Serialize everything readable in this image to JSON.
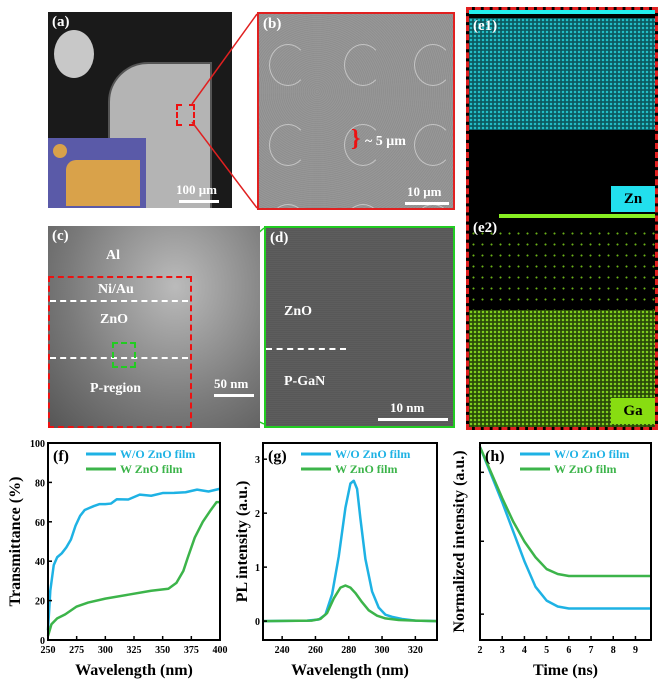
{
  "panels": {
    "a": {
      "label": "(a)",
      "scale_bar": "100 μm"
    },
    "b": {
      "label": "(b)",
      "annotation": "~ 5 μm",
      "scale_bar": "10 μm"
    },
    "c": {
      "label": "(c)",
      "layers": [
        "Al",
        "Ni/Au",
        "ZnO",
        "P-region"
      ],
      "scale_bar": "50 nm"
    },
    "d": {
      "label": "(d)",
      "layers": [
        "ZnO",
        "P-GaN"
      ],
      "scale_bar": "10 nm"
    },
    "e1": {
      "label": "(e1)",
      "element": "Zn"
    },
    "e2": {
      "label": "(e2)",
      "element": "Ga"
    }
  },
  "colors": {
    "blue": "#1eb2e4",
    "green": "#3cb44a",
    "zn": "#22e0ee",
    "ga": "#88dd11"
  },
  "chart_data": [
    {
      "id": "f",
      "type": "line",
      "label": "(f)",
      "xlabel": "Wavelength (nm)",
      "ylabel": "Transmittance (%)",
      "xlim": [
        250,
        400
      ],
      "ylim": [
        0,
        100
      ],
      "xticks": [
        250,
        275,
        300,
        325,
        350,
        375,
        400
      ],
      "yticks": [
        0,
        20,
        40,
        60,
        80,
        100
      ],
      "legend": "top-right",
      "series": [
        {
          "name": "W/O ZnO film",
          "x": [
            250,
            252,
            255,
            258,
            262,
            266,
            270,
            274,
            278,
            282,
            286,
            290,
            295,
            300,
            305,
            310,
            320,
            330,
            340,
            350,
            360,
            370,
            380,
            390,
            400
          ],
          "y": [
            5,
            25,
            38,
            42,
            44,
            47,
            51,
            58,
            63,
            66,
            67,
            68,
            69,
            69,
            70,
            71,
            72,
            73,
            74,
            74,
            75,
            75,
            76,
            76,
            76
          ]
        },
        {
          "name": "W ZnO film",
          "x": [
            250,
            253,
            258,
            265,
            275,
            285,
            300,
            320,
            340,
            355,
            362,
            368,
            372,
            378,
            385,
            392,
            397,
            400
          ],
          "y": [
            2,
            8,
            11,
            13,
            17,
            19,
            21,
            23,
            25,
            26,
            29,
            35,
            42,
            52,
            60,
            66,
            70,
            70
          ]
        }
      ]
    },
    {
      "id": "g",
      "type": "line",
      "label": "(g)",
      "xlabel": "Wavelength (nm)",
      "ylabel": "PL intensity (a.u.)",
      "xlim": [
        228.5,
        333
      ],
      "ylim": [
        -0.35,
        3.3
      ],
      "xticks": [
        240,
        260,
        280,
        300,
        320
      ],
      "yticks": [
        0,
        1,
        2,
        3
      ],
      "legend": "top-right",
      "series": [
        {
          "name": "W/O ZnO film",
          "x": [
            228,
            255,
            262,
            266,
            270,
            274,
            278,
            281,
            283,
            285,
            287,
            290,
            294,
            298,
            302,
            306,
            312,
            320,
            333
          ],
          "y": [
            0,
            0.01,
            0.03,
            0.12,
            0.5,
            1.2,
            2.1,
            2.55,
            2.6,
            2.45,
            1.9,
            1.15,
            0.55,
            0.25,
            0.12,
            0.08,
            0.04,
            0.01,
            0
          ]
        },
        {
          "name": "W ZnO film",
          "x": [
            228,
            258,
            263,
            267,
            271,
            275,
            278,
            281,
            284,
            288,
            292,
            297,
            302,
            310,
            320,
            333
          ],
          "y": [
            0,
            0.01,
            0.04,
            0.15,
            0.42,
            0.62,
            0.66,
            0.62,
            0.52,
            0.35,
            0.2,
            0.1,
            0.05,
            0.02,
            0.01,
            0
          ]
        }
      ]
    },
    {
      "id": "h",
      "type": "line",
      "label": "(h)",
      "xlabel": "Time (ns)",
      "ylabel": "Normalized intensity (a.u.)",
      "xlim": [
        2,
        9.7
      ],
      "ylim": [
        0,
        1
      ],
      "xticks": [
        2,
        3,
        4,
        5,
        6,
        7,
        8,
        9
      ],
      "yticks": [],
      "legend": "top-right",
      "series": [
        {
          "name": "W/O ZnO film",
          "x": [
            2,
            2.5,
            3,
            3.5,
            4,
            4.5,
            5,
            5.5,
            6,
            7,
            9.7
          ],
          "y": [
            0.98,
            0.84,
            0.7,
            0.55,
            0.4,
            0.27,
            0.2,
            0.17,
            0.16,
            0.16,
            0.16
          ]
        },
        {
          "name": "W ZnO film",
          "x": [
            2,
            2.5,
            3,
            3.5,
            4,
            4.5,
            5,
            5.5,
            6,
            7,
            9.7
          ],
          "y": [
            0.98,
            0.85,
            0.72,
            0.6,
            0.5,
            0.42,
            0.36,
            0.335,
            0.325,
            0.325,
            0.325
          ]
        }
      ]
    }
  ]
}
